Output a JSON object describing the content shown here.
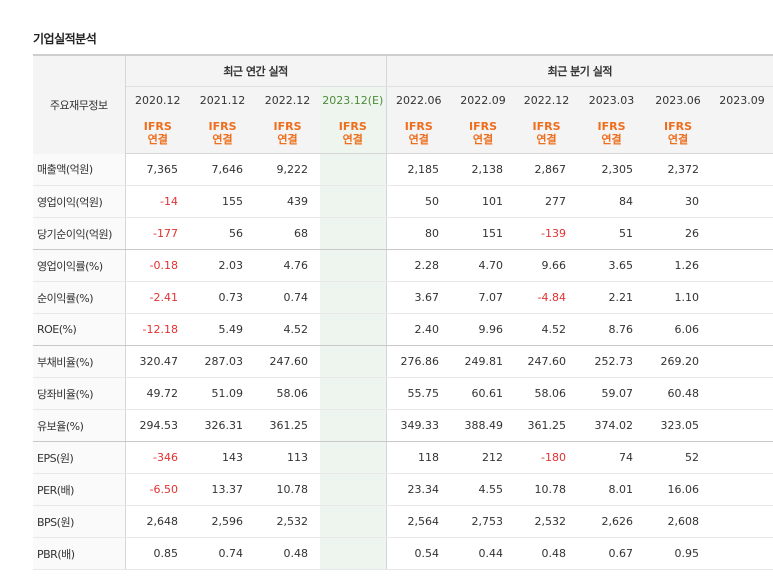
{
  "title": "기업실적분석",
  "header": {
    "row_label": "주요재무정보",
    "annual_group": "최근 연간 실적",
    "quarter_group": "최근 분기 실적",
    "ifrs_line1": "IFRS",
    "ifrs_line2": "연결"
  },
  "annual_periods": [
    "2020.12",
    "2021.12",
    "2022.12",
    "2023.12(E)"
  ],
  "quarter_periods": [
    "2022.06",
    "2022.09",
    "2022.12",
    "2023.03",
    "2023.06",
    "2023.09"
  ],
  "rows": [
    {
      "label": "매출액(억원)",
      "values": [
        "7,365",
        "7,646",
        "9,222",
        "",
        "2,185",
        "2,138",
        "2,867",
        "2,305",
        "2,372",
        ""
      ]
    },
    {
      "label": "영업이익(억원)",
      "values": [
        "-14",
        "155",
        "439",
        "",
        "50",
        "101",
        "277",
        "84",
        "30",
        ""
      ]
    },
    {
      "label": "당기순이익(억원)",
      "values": [
        "-177",
        "56",
        "68",
        "",
        "80",
        "151",
        "-139",
        "51",
        "26",
        ""
      ]
    },
    {
      "label": "영업이익률(%)",
      "values": [
        "-0.18",
        "2.03",
        "4.76",
        "",
        "2.28",
        "4.70",
        "9.66",
        "3.65",
        "1.26",
        ""
      ]
    },
    {
      "label": "순이익률(%)",
      "values": [
        "-2.41",
        "0.73",
        "0.74",
        "",
        "3.67",
        "7.07",
        "-4.84",
        "2.21",
        "1.10",
        ""
      ]
    },
    {
      "label": "ROE(%)",
      "values": [
        "-12.18",
        "5.49",
        "4.52",
        "",
        "2.40",
        "9.96",
        "4.52",
        "8.76",
        "6.06",
        ""
      ]
    },
    {
      "label": "부채비율(%)",
      "values": [
        "320.47",
        "287.03",
        "247.60",
        "",
        "276.86",
        "249.81",
        "247.60",
        "252.73",
        "269.20",
        ""
      ]
    },
    {
      "label": "당좌비율(%)",
      "values": [
        "49.72",
        "51.09",
        "58.06",
        "",
        "55.75",
        "60.61",
        "58.06",
        "59.07",
        "60.48",
        ""
      ]
    },
    {
      "label": "유보율(%)",
      "values": [
        "294.53",
        "326.31",
        "361.25",
        "",
        "349.33",
        "388.49",
        "361.25",
        "374.02",
        "323.05",
        ""
      ]
    },
    {
      "label": "EPS(원)",
      "values": [
        "-346",
        "143",
        "113",
        "",
        "118",
        "212",
        "-180",
        "74",
        "52",
        ""
      ]
    },
    {
      "label": "PER(배)",
      "values": [
        "-6.50",
        "13.37",
        "10.78",
        "",
        "23.34",
        "4.55",
        "10.78",
        "8.01",
        "16.06",
        ""
      ]
    },
    {
      "label": "BPS(원)",
      "values": [
        "2,648",
        "2,596",
        "2,532",
        "",
        "2,564",
        "2,753",
        "2,532",
        "2,626",
        "2,608",
        ""
      ]
    },
    {
      "label": "PBR(배)",
      "values": [
        "0.85",
        "0.74",
        "0.48",
        "",
        "0.54",
        "0.44",
        "0.48",
        "0.67",
        "0.95",
        ""
      ]
    }
  ],
  "colors": {
    "negative": "#e23131",
    "ifrs": "#ee6e1e",
    "estimate_bg": "#eef5ef"
  }
}
